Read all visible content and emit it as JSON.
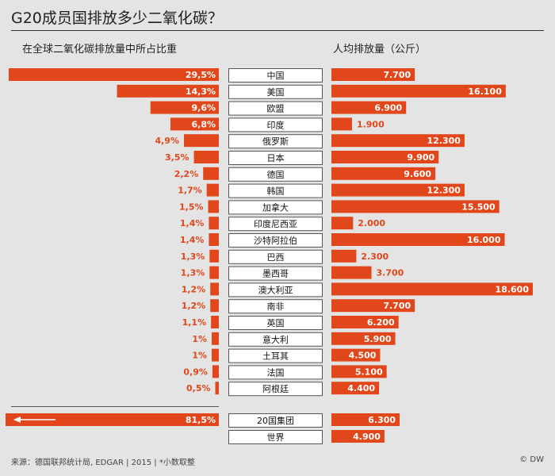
{
  "title": "G20成员国排放多少二氧化碳？",
  "left_heading": "在全球二氧化碳排放量中所占比重",
  "right_heading": "人均排放量（公斤）",
  "footer": {
    "source": "来源：德国联邦统计局, EDGAR | 2015 | *小数取整",
    "brand": "© DW"
  },
  "colors": {
    "accent": "#e1471a",
    "background": "#e4e4e4",
    "label_box_border": "#555555"
  },
  "chart_data": {
    "type": "bar",
    "countries": [
      {
        "name": "中国",
        "share": 29.5,
        "share_label": "29,5%",
        "percap": 7700,
        "percap_label": "7.700"
      },
      {
        "name": "美国",
        "share": 14.3,
        "share_label": "14,3%",
        "percap": 16100,
        "percap_label": "16.100"
      },
      {
        "name": "欧盟",
        "share": 9.6,
        "share_label": "9,6%",
        "percap": 6900,
        "percap_label": "6.900"
      },
      {
        "name": "印度",
        "share": 6.8,
        "share_label": "6,8%",
        "percap": 1900,
        "percap_label": "1.900"
      },
      {
        "name": "俄罗斯",
        "share": 4.9,
        "share_label": "4,9%",
        "percap": 12300,
        "percap_label": "12.300"
      },
      {
        "name": "日本",
        "share": 3.5,
        "share_label": "3,5%",
        "percap": 9900,
        "percap_label": "9.900"
      },
      {
        "name": "德国",
        "share": 2.2,
        "share_label": "2,2%",
        "percap": 9600,
        "percap_label": "9.600"
      },
      {
        "name": "韩国",
        "share": 1.7,
        "share_label": "1,7%",
        "percap": 12300,
        "percap_label": "12.300"
      },
      {
        "name": "加拿大",
        "share": 1.5,
        "share_label": "1,5%",
        "percap": 15500,
        "percap_label": "15.500"
      },
      {
        "name": "印度尼西亚",
        "share": 1.4,
        "share_label": "1,4%",
        "percap": 2000,
        "percap_label": "2.000"
      },
      {
        "name": "沙特阿拉伯",
        "share": 1.4,
        "share_label": "1,4%",
        "percap": 16000,
        "percap_label": "16.000"
      },
      {
        "name": "巴西",
        "share": 1.3,
        "share_label": "1,3%",
        "percap": 2300,
        "percap_label": "2.300"
      },
      {
        "name": "墨西哥",
        "share": 1.3,
        "share_label": "1,3%",
        "percap": 3700,
        "percap_label": "3.700"
      },
      {
        "name": "澳大利亚",
        "share": 1.2,
        "share_label": "1,2%",
        "percap": 18600,
        "percap_label": "18.600"
      },
      {
        "name": "南非",
        "share": 1.2,
        "share_label": "1,2%",
        "percap": 7700,
        "percap_label": "7.700"
      },
      {
        "name": "英国",
        "share": 1.1,
        "share_label": "1,1%",
        "percap": 6200,
        "percap_label": "6.200"
      },
      {
        "name": "意大利",
        "share": 1.0,
        "share_label": "1%",
        "percap": 5900,
        "percap_label": "5.900"
      },
      {
        "name": "土耳其",
        "share": 1.0,
        "share_label": "1%",
        "percap": 4500,
        "percap_label": "4.500"
      },
      {
        "name": "法国",
        "share": 0.9,
        "share_label": "0,9%",
        "percap": 5100,
        "percap_label": "5.100"
      },
      {
        "name": "阿根廷",
        "share": 0.5,
        "share_label": "0,5%",
        "percap": 4400,
        "percap_label": "4.400"
      }
    ],
    "totals": [
      {
        "name": "20国集团",
        "share": 81.5,
        "share_label": "81,5%",
        "percap": 6300,
        "percap_label": "6.300"
      },
      {
        "name": "世界",
        "share": null,
        "share_label": "",
        "percap": 4900,
        "percap_label": "4.900"
      }
    ]
  }
}
